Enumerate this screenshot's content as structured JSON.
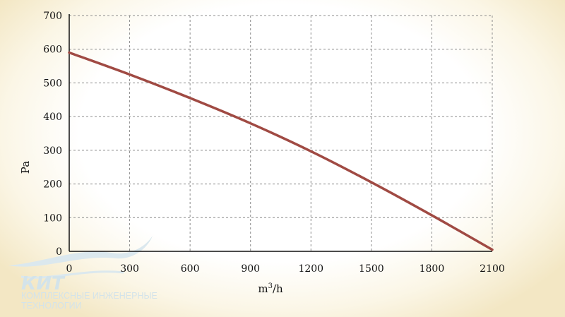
{
  "chart_data": {
    "type": "line",
    "xlabel_base": "m",
    "xlabel_sup": "3",
    "xlabel_tail": "/h",
    "ylabel": "Pa",
    "xlim": [
      0,
      2100
    ],
    "ylim": [
      0,
      700
    ],
    "x_ticks": [
      0,
      300,
      600,
      900,
      1200,
      1500,
      1800,
      2100
    ],
    "y_ticks": [
      0,
      100,
      200,
      300,
      400,
      500,
      600,
      700
    ],
    "grid": true,
    "series": [
      {
        "color": "#a04a43",
        "x": [
          0,
          300,
          600,
          900,
          1200,
          1500,
          1800,
          2100
        ],
        "y": [
          590,
          525,
          455,
          380,
          297,
          205,
          107,
          5
        ]
      }
    ]
  },
  "watermark": {
    "brand": "КИТ",
    "line1": "КОМПЛЕКСНЫЕ ИНЖЕНЕРНЫЕ",
    "line2": "ТЕХНОЛОГИИ",
    "color": "#d3e3ea"
  }
}
